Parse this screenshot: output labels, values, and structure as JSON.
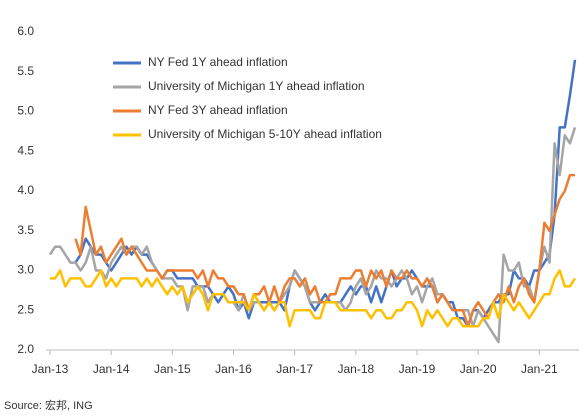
{
  "chart_data": {
    "type": "line",
    "categories": [
      "Jan-13",
      null,
      null,
      null,
      null,
      null,
      null,
      null,
      null,
      null,
      null,
      null,
      "Jan-14",
      null,
      null,
      null,
      null,
      null,
      null,
      null,
      null,
      null,
      null,
      null,
      "Jan-15",
      null,
      null,
      null,
      null,
      null,
      null,
      null,
      null,
      null,
      null,
      null,
      "Jan-16",
      null,
      null,
      null,
      null,
      null,
      null,
      null,
      null,
      null,
      null,
      null,
      "Jan-17",
      null,
      null,
      null,
      null,
      null,
      null,
      null,
      null,
      null,
      null,
      null,
      "Jan-18",
      null,
      null,
      null,
      null,
      null,
      null,
      null,
      null,
      null,
      null,
      null,
      "Jan-19",
      null,
      null,
      null,
      null,
      null,
      null,
      null,
      null,
      null,
      null,
      null,
      "Jan-20",
      null,
      null,
      null,
      null,
      null,
      null,
      null,
      null,
      null,
      null,
      null,
      "Jan-21",
      null,
      null,
      null,
      null,
      null,
      null,
      null
    ],
    "series": [
      {
        "name": "NY Fed 1Y ahead inflation",
        "color": "#4472c4",
        "values": [
          null,
          null,
          null,
          null,
          null,
          3.1,
          3.2,
          3.4,
          3.3,
          3.2,
          3.2,
          3.1,
          3.0,
          3.1,
          3.2,
          3.3,
          3.2,
          3.3,
          3.2,
          3.2,
          3.1,
          3.0,
          2.9,
          3.0,
          3.0,
          2.9,
          2.9,
          2.9,
          2.9,
          2.8,
          2.8,
          2.8,
          2.7,
          2.6,
          2.7,
          2.8,
          2.7,
          2.5,
          2.6,
          2.4,
          2.6,
          2.6,
          2.6,
          2.6,
          2.6,
          2.6,
          2.5,
          2.8,
          3.0,
          2.9,
          2.8,
          2.6,
          2.5,
          2.6,
          2.7,
          2.6,
          2.6,
          2.6,
          2.7,
          2.8,
          2.7,
          2.8,
          2.8,
          2.6,
          2.8,
          2.6,
          2.8,
          3.0,
          2.8,
          2.9,
          2.9,
          3.0,
          2.9,
          2.8,
          2.8,
          2.8,
          2.6,
          2.7,
          2.6,
          2.6,
          2.4,
          2.4,
          2.3,
          2.5,
          2.5,
          2.4,
          2.5,
          2.6,
          2.6,
          2.7,
          2.7,
          3.0,
          2.9,
          2.9,
          2.8,
          3.0,
          3.0,
          3.1,
          3.2,
          3.7,
          4.8,
          4.8,
          5.2,
          5.65
        ]
      },
      {
        "name": "University of Michigan 1Y ahead inflation",
        "color": "#a5a5a5",
        "values": [
          3.2,
          3.3,
          3.3,
          3.2,
          3.1,
          3.1,
          3.0,
          3.1,
          3.3,
          3.0,
          3.0,
          2.9,
          3.1,
          3.2,
          3.3,
          3.2,
          3.3,
          3.3,
          3.2,
          3.3,
          3.1,
          3.0,
          2.9,
          2.9,
          2.9,
          2.8,
          2.8,
          2.5,
          2.8,
          2.8,
          2.8,
          2.6,
          2.7,
          2.7,
          2.7,
          2.6,
          2.6,
          2.5,
          2.7,
          2.5,
          2.6,
          2.6,
          2.5,
          2.6,
          2.5,
          2.6,
          2.7,
          2.8,
          3.0,
          2.9,
          2.8,
          2.6,
          2.6,
          2.6,
          2.6,
          2.6,
          2.6,
          2.6,
          2.5,
          2.6,
          2.8,
          2.9,
          2.7,
          2.8,
          3.0,
          2.9,
          2.9,
          2.8,
          2.9,
          3.0,
          2.9,
          2.7,
          2.8,
          2.6,
          2.8,
          2.9,
          2.7,
          2.7,
          2.6,
          2.5,
          2.5,
          2.5,
          2.5,
          2.3,
          2.5,
          2.4,
          2.3,
          2.2,
          2.1,
          3.2,
          3.0,
          3.0,
          3.1,
          2.8,
          2.8,
          2.6,
          3.0,
          3.3,
          3.1,
          4.6,
          4.2,
          4.7,
          4.6,
          4.8
        ]
      },
      {
        "name": "NY Fed 3Y ahead inflation",
        "color": "#ed7d31",
        "values": [
          null,
          null,
          null,
          null,
          null,
          3.4,
          3.2,
          3.8,
          3.5,
          3.2,
          3.3,
          3.1,
          3.2,
          3.3,
          3.4,
          3.2,
          3.3,
          3.2,
          3.1,
          3.0,
          3.0,
          3.0,
          2.9,
          3.0,
          3.0,
          3.0,
          3.0,
          3.0,
          3.0,
          2.9,
          3.0,
          2.8,
          3.0,
          2.9,
          2.9,
          2.8,
          2.8,
          2.7,
          2.7,
          2.5,
          2.7,
          2.7,
          2.8,
          2.6,
          2.8,
          2.6,
          2.8,
          2.9,
          2.9,
          2.8,
          2.9,
          2.7,
          2.8,
          2.6,
          2.6,
          2.7,
          2.7,
          2.9,
          2.9,
          2.9,
          3.0,
          3.0,
          2.8,
          3.0,
          2.9,
          3.0,
          2.8,
          3.0,
          2.9,
          2.9,
          3.0,
          2.9,
          2.9,
          2.8,
          2.9,
          2.8,
          2.6,
          2.7,
          2.6,
          2.5,
          2.5,
          2.5,
          2.3,
          2.5,
          2.6,
          2.5,
          2.4,
          2.6,
          2.7,
          2.6,
          2.8,
          2.6,
          2.8,
          2.9,
          2.7,
          2.6,
          3.0,
          3.6,
          3.5,
          3.7,
          3.9,
          4.0,
          4.2,
          4.2
        ]
      },
      {
        "name": "University of Michigan 5-10Y ahead inflation",
        "color": "#ffc000",
        "values": [
          2.9,
          2.9,
          3.0,
          2.8,
          2.9,
          2.9,
          2.9,
          2.8,
          2.8,
          2.9,
          3.0,
          2.8,
          2.9,
          2.8,
          2.9,
          2.9,
          2.9,
          2.9,
          2.8,
          2.9,
          2.8,
          2.9,
          2.8,
          2.7,
          2.8,
          2.7,
          2.8,
          2.6,
          2.7,
          2.8,
          2.7,
          2.5,
          2.7,
          2.7,
          2.7,
          2.6,
          2.6,
          2.6,
          2.6,
          2.5,
          2.7,
          2.6,
          2.5,
          2.6,
          2.5,
          2.6,
          2.6,
          2.3,
          2.5,
          2.5,
          2.5,
          2.5,
          2.4,
          2.4,
          2.6,
          2.6,
          2.6,
          2.5,
          2.5,
          2.5,
          2.5,
          2.5,
          2.5,
          2.4,
          2.5,
          2.5,
          2.4,
          2.4,
          2.5,
          2.5,
          2.6,
          2.6,
          2.5,
          2.3,
          2.5,
          2.4,
          2.5,
          2.4,
          2.3,
          2.4,
          2.4,
          2.3,
          2.3,
          2.3,
          2.3,
          2.4,
          2.4,
          2.6,
          2.4,
          2.7,
          2.6,
          2.5,
          2.6,
          2.5,
          2.4,
          2.5,
          2.6,
          2.7,
          2.7,
          2.9,
          3.0,
          2.8,
          2.8,
          2.9
        ]
      }
    ],
    "ylim": [
      2.0,
      6.0
    ],
    "yticks": [
      {
        "value": 2,
        "label": "2.0"
      },
      2.5,
      {
        "value": 3,
        "label": "3.0"
      },
      3.5,
      {
        "value": 4,
        "label": "4.0"
      },
      4.5,
      {
        "value": 5,
        "label": "5.0"
      },
      5.5,
      {
        "value": 6,
        "label": "6.0"
      }
    ],
    "grid": false,
    "legend": "top-left",
    "source": "Source: 宏邦, ING"
  }
}
